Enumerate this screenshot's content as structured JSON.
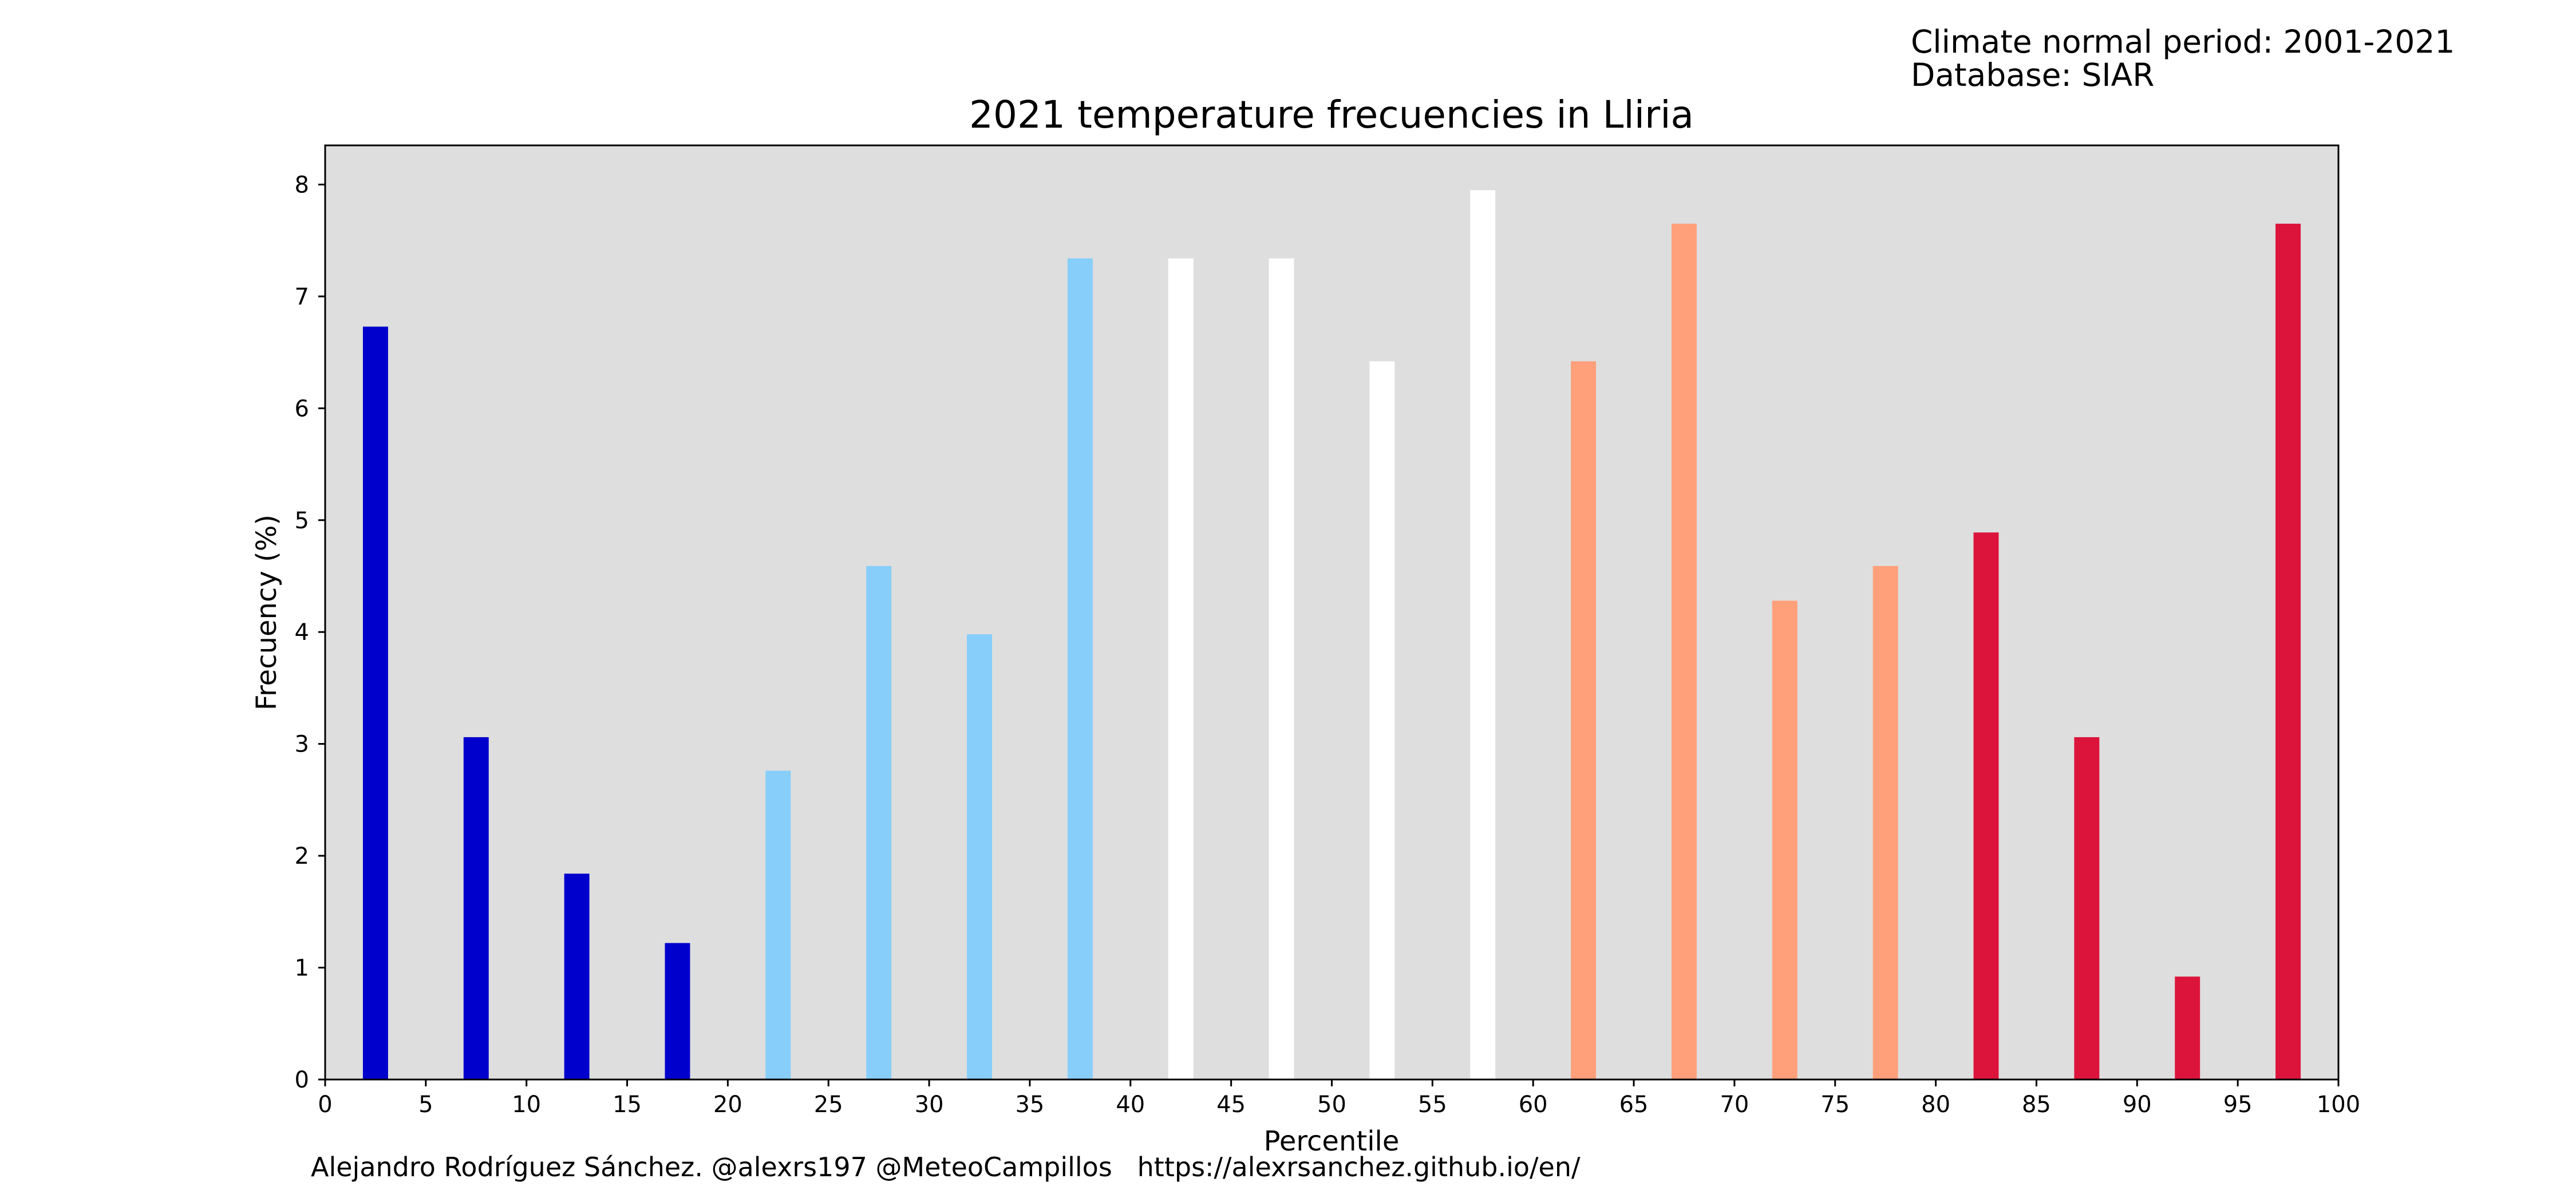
{
  "header": {
    "line1": "Climate normal period: 2001-2021",
    "line2": "Database: SIAR"
  },
  "footer": {
    "credit": "Alejandro Rodríguez Sánchez. @alexrs197 @MeteoCampillos   https://alexrsanchez.github.io/en/"
  },
  "chart_data": {
    "type": "bar",
    "title": "2021 temperature frecuencies in Lliria",
    "xlabel": "Percentile",
    "ylabel": "Frecuency (%)",
    "xlim": [
      0,
      100
    ],
    "ylim": [
      0,
      8.35
    ],
    "xticks": [
      0,
      5,
      10,
      15,
      20,
      25,
      30,
      35,
      40,
      45,
      50,
      55,
      60,
      65,
      70,
      75,
      80,
      85,
      90,
      95,
      100
    ],
    "yticks": [
      0,
      1,
      2,
      3,
      4,
      5,
      6,
      7,
      8
    ],
    "bar_width": 1.25,
    "grid": false,
    "background": "#dedede",
    "bars": [
      {
        "x": 2.5,
        "value": 6.73,
        "color": "#0000cd"
      },
      {
        "x": 7.5,
        "value": 3.06,
        "color": "#0000cd"
      },
      {
        "x": 12.5,
        "value": 1.84,
        "color": "#0000cd"
      },
      {
        "x": 17.5,
        "value": 1.22,
        "color": "#0000cd"
      },
      {
        "x": 22.5,
        "value": 2.76,
        "color": "#87cefa"
      },
      {
        "x": 27.5,
        "value": 4.59,
        "color": "#87cefa"
      },
      {
        "x": 32.5,
        "value": 3.98,
        "color": "#87cefa"
      },
      {
        "x": 37.5,
        "value": 7.34,
        "color": "#87cefa"
      },
      {
        "x": 42.5,
        "value": 7.34,
        "color": "#ffffff"
      },
      {
        "x": 47.5,
        "value": 7.34,
        "color": "#ffffff"
      },
      {
        "x": 52.5,
        "value": 6.42,
        "color": "#ffffff"
      },
      {
        "x": 57.5,
        "value": 7.95,
        "color": "#ffffff"
      },
      {
        "x": 62.5,
        "value": 6.42,
        "color": "#ffa07a"
      },
      {
        "x": 67.5,
        "value": 7.65,
        "color": "#ffa07a"
      },
      {
        "x": 72.5,
        "value": 4.28,
        "color": "#ffa07a"
      },
      {
        "x": 77.5,
        "value": 4.59,
        "color": "#ffa07a"
      },
      {
        "x": 82.5,
        "value": 4.89,
        "color": "#dc143c"
      },
      {
        "x": 87.5,
        "value": 3.06,
        "color": "#dc143c"
      },
      {
        "x": 92.5,
        "value": 0.92,
        "color": "#dc143c"
      },
      {
        "x": 97.5,
        "value": 7.65,
        "color": "#dc143c"
      }
    ]
  }
}
